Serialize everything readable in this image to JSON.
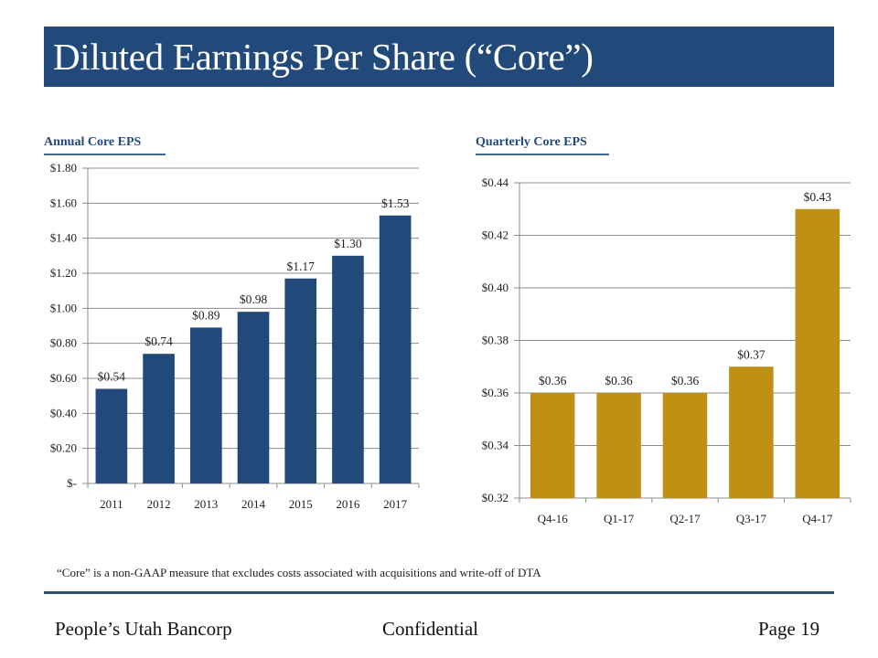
{
  "slide": {
    "title": "Diluted Earnings Per Share (“Core”)",
    "footnote": "“Core” is a non-GAAP measure that excludes costs associated with acquisitions and write-off of DTA",
    "footer": {
      "company": "People’s Utah Bancorp",
      "classification": "Confidential",
      "page": "Page 19"
    }
  },
  "colors": {
    "title_bar": "#214a7b",
    "annual_bars": "#214a7b",
    "quarterly_bars": "#bf9013"
  },
  "chart_data": [
    {
      "type": "bar",
      "title": "Annual  Core EPS",
      "categories": [
        "2011",
        "2012",
        "2013",
        "2014",
        "2015",
        "2016",
        "2017"
      ],
      "values": [
        0.54,
        0.74,
        0.89,
        0.98,
        1.17,
        1.3,
        1.53
      ],
      "data_labels": [
        "$0.54",
        "$0.74",
        "$0.89",
        "$0.98",
        "$1.17",
        "$1.30",
        "$1.53"
      ],
      "xlabel": "",
      "ylabel": "",
      "ylim": [
        0,
        1.8
      ],
      "yticks": [
        0,
        0.2,
        0.4,
        0.6,
        0.8,
        1.0,
        1.2,
        1.4,
        1.6,
        1.8
      ],
      "ytick_labels": [
        "$-",
        "$0.20",
        "$0.40",
        "$0.60",
        "$0.80",
        "$1.00",
        "$1.20",
        "$1.40",
        "$1.60",
        "$1.80"
      ],
      "grid": true,
      "legend": "none",
      "color": "#214a7b"
    },
    {
      "type": "bar",
      "title": "Quarterly Core EPS",
      "categories": [
        "Q4-16",
        "Q1-17",
        "Q2-17",
        "Q3-17",
        "Q4-17"
      ],
      "values": [
        0.36,
        0.36,
        0.36,
        0.37,
        0.43
      ],
      "data_labels": [
        "$0.36",
        "$0.36",
        "$0.36",
        "$0.37",
        "$0.43"
      ],
      "xlabel": "",
      "ylabel": "",
      "ylim": [
        0.32,
        0.44
      ],
      "yticks": [
        0.32,
        0.34,
        0.36,
        0.38,
        0.4,
        0.42,
        0.44
      ],
      "ytick_labels": [
        "$0.32",
        "$0.34",
        "$0.36",
        "$0.38",
        "$0.40",
        "$0.42",
        "$0.44"
      ],
      "grid": true,
      "legend": "none",
      "color": "#bf9013"
    }
  ]
}
